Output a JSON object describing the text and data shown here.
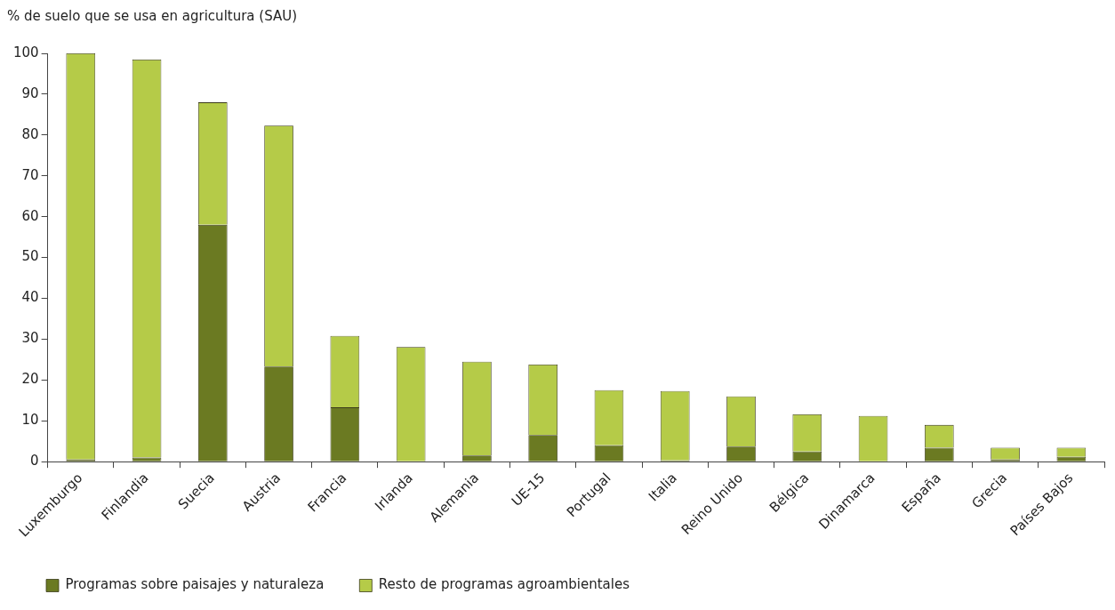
{
  "chart_data": {
    "type": "bar",
    "ylabel": "% de suelo que se usa en agricultura (SAU)",
    "categories": [
      "Luxemburgo",
      "Finlandia",
      "Suecia",
      "Austria",
      "Francia",
      "Irlanda",
      "Alemania",
      "UE-15",
      "Portugal",
      "Italia",
      "Reino Unido",
      "Bélgica",
      "Dinamarca",
      "España",
      "Grecia",
      "Países Bajos"
    ],
    "stacked": true,
    "series": [
      {
        "name": "Programas sobre paisajes y naturaleza",
        "color": "#6b7a22",
        "values": [
          0.5,
          1,
          58,
          23.3,
          13.3,
          0,
          1.5,
          6.5,
          4,
          0.3,
          3.7,
          2.5,
          0,
          3.4,
          0.5,
          1.2
        ]
      },
      {
        "name": "Resto de programas agroambientales",
        "color": "#b5cb48",
        "values": [
          99.5,
          97.5,
          30,
          59,
          17.5,
          28.1,
          23,
          17.3,
          13.5,
          17,
          12.3,
          9.1,
          11.2,
          5.6,
          2.9,
          2.2
        ]
      }
    ],
    "ylim": [
      0,
      100
    ],
    "yticks": [
      0,
      10,
      20,
      30,
      40,
      50,
      60,
      70,
      80,
      90,
      100
    ],
    "grid": false,
    "legend": "bottom"
  }
}
